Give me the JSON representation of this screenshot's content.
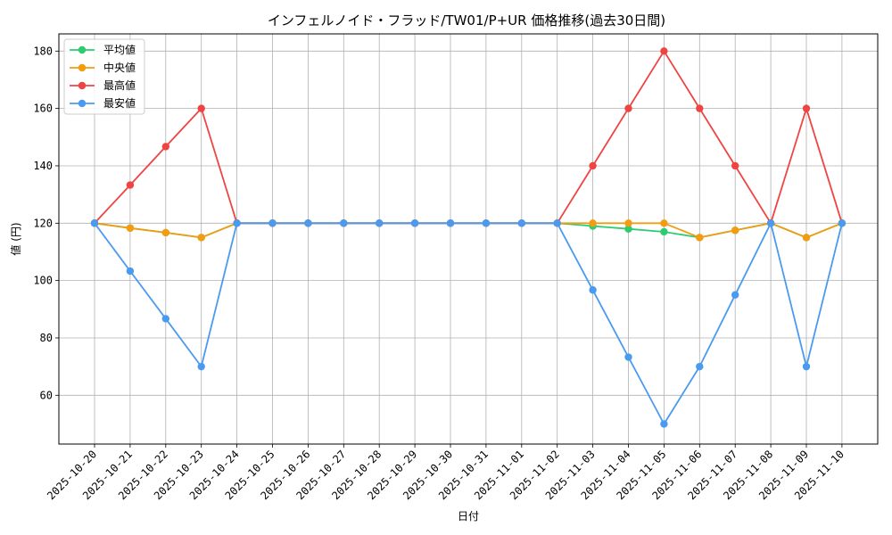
{
  "chart_data": {
    "type": "line",
    "title": "インフェルノイド・フラッド/TW01/P+UR 価格推移(過去30日間)",
    "xlabel": "日付",
    "ylabel": "値 (円)",
    "ylim": [
      43,
      186
    ],
    "yticks": [
      60,
      80,
      100,
      120,
      140,
      160,
      180
    ],
    "grid": true,
    "legend_position": "top-left",
    "categories": [
      "2025-10-20",
      "2025-10-21",
      "2025-10-22",
      "2025-10-23",
      "2025-10-24",
      "2025-10-25",
      "2025-10-26",
      "2025-10-27",
      "2025-10-28",
      "2025-10-29",
      "2025-10-30",
      "2025-10-31",
      "2025-11-01",
      "2025-11-02",
      "2025-11-03",
      "2025-11-04",
      "2025-11-05",
      "2025-11-06",
      "2025-11-07",
      "2025-11-08",
      "2025-11-09",
      "2025-11-10"
    ],
    "series": [
      {
        "name": "平均値",
        "color": "#2ecc71",
        "values": [
          120,
          118.3,
          116.7,
          115,
          120,
          120,
          120,
          120,
          120,
          120,
          120,
          120,
          120,
          120,
          119,
          118,
          117,
          115,
          117.5,
          120,
          115,
          120
        ]
      },
      {
        "name": "中央値",
        "color": "#f39c12",
        "values": [
          120,
          118.3,
          116.7,
          115,
          120,
          120,
          120,
          120,
          120,
          120,
          120,
          120,
          120,
          120,
          120,
          120,
          120,
          115,
          117.5,
          120,
          115,
          120
        ]
      },
      {
        "name": "最高値",
        "color": "#ef4444",
        "values": [
          120,
          133.3,
          146.7,
          160,
          120,
          120,
          120,
          120,
          120,
          120,
          120,
          120,
          120,
          120,
          140,
          160,
          180,
          160,
          140,
          120,
          160,
          120
        ]
      },
      {
        "name": "最安値",
        "color": "#4a9af0",
        "values": [
          120,
          103.3,
          86.7,
          70,
          120,
          120,
          120,
          120,
          120,
          120,
          120,
          120,
          120,
          120,
          96.7,
          73.3,
          50,
          70,
          95,
          120,
          70,
          120
        ]
      }
    ]
  }
}
